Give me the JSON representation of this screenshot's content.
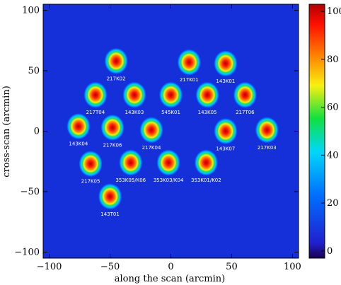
{
  "chart_data": {
    "type": "heatmap",
    "title": "",
    "xlabel": "along the scan (arcmin)",
    "ylabel": "cross-scan (arcmin)",
    "xlim": [
      -105,
      105
    ],
    "ylim": [
      -105,
      105
    ],
    "x_ticks": [
      -100,
      -50,
      0,
      50,
      100
    ],
    "y_ticks": [
      -100,
      -50,
      0,
      50,
      100
    ],
    "colorbar": {
      "min": -3,
      "max": 103,
      "ticks": [
        0,
        20,
        40,
        60,
        80,
        100
      ],
      "colormap": "rainbow (blue-cyan-green-yellow-red)"
    },
    "background_color": "#1530d8",
    "spots": [
      {
        "label": "217K02",
        "x": -45,
        "y": 58,
        "peak": 100
      },
      {
        "label": "217K01",
        "x": 15,
        "y": 57,
        "peak": 100
      },
      {
        "label": "143K01",
        "x": 45,
        "y": 56,
        "peak": 100
      },
      {
        "label": "217T04",
        "x": -62,
        "y": 30,
        "peak": 100
      },
      {
        "label": "143K03",
        "x": -30,
        "y": 30,
        "peak": 100
      },
      {
        "label": "545K01",
        "x": 0,
        "y": 30,
        "peak": 100
      },
      {
        "label": "143K05",
        "x": 30,
        "y": 30,
        "peak": 100
      },
      {
        "label": "217T06",
        "x": 61,
        "y": 30,
        "peak": 100
      },
      {
        "label": "143K04",
        "x": -76,
        "y": 4,
        "peak": 100
      },
      {
        "label": "217K06",
        "x": -48,
        "y": 3,
        "peak": 100
      },
      {
        "label": "217K04",
        "x": -16,
        "y": 1,
        "peak": 100
      },
      {
        "label": "143K07",
        "x": 45,
        "y": 0,
        "peak": 100
      },
      {
        "label": "217K03",
        "x": 79,
        "y": 1,
        "peak": 100
      },
      {
        "label": "217K05",
        "x": -66,
        "y": -27,
        "peak": 100
      },
      {
        "label": "353K05/K06",
        "x": -33,
        "y": -26,
        "peak": 100
      },
      {
        "label": "353K03/K04",
        "x": -2,
        "y": -26,
        "peak": 100
      },
      {
        "label": "353K01/K02",
        "x": 29,
        "y": -26,
        "peak": 100
      },
      {
        "label": "143T01",
        "x": -50,
        "y": -54,
        "peak": 100
      }
    ]
  }
}
